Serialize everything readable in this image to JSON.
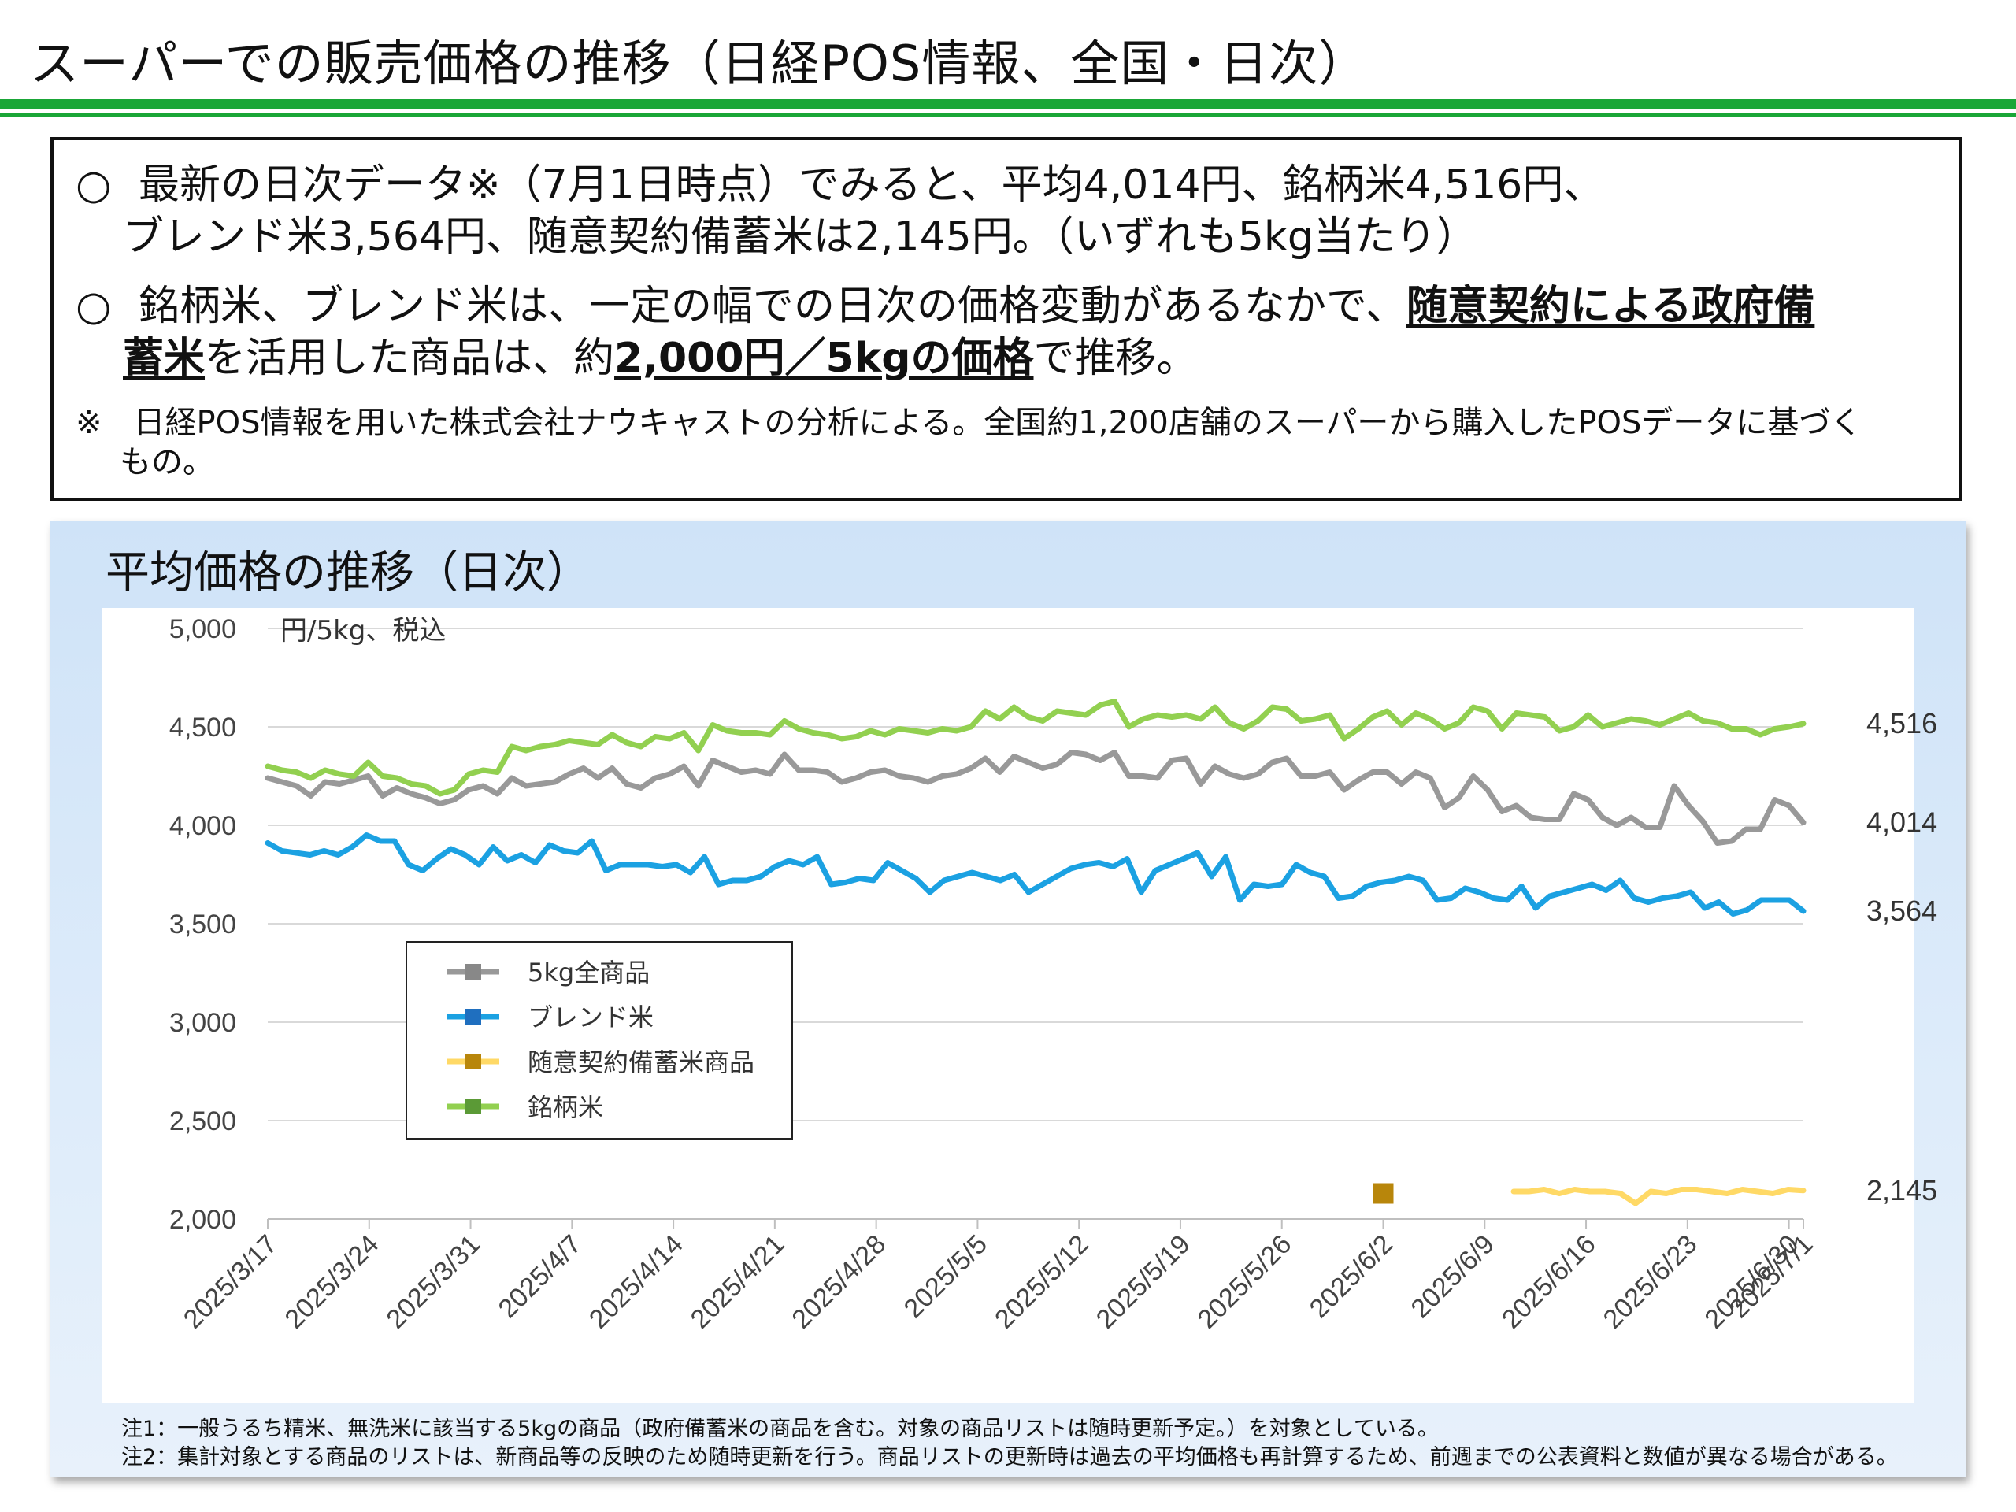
{
  "header": {
    "title": "スーパーでの販売価格の推移（日経POS情報、全国・日次）"
  },
  "summary": {
    "bullet_mark": "○",
    "b1_l1": "最新の日次データ※（7月1日時点）でみると、平均4,014円、銘柄米4,516円、",
    "b1_l2": "ブレンド米3,564円、随意契約備蓄米は2,145円。（いずれも5kg当たり）",
    "b2_a": "銘柄米、ブレンド米は、一定の幅での日次の価格変動があるなかで、",
    "b2_b": "随意契約による政府備",
    "b2_c": "蓄米",
    "b2_d": "を活用した商品は、約",
    "b2_e": "2,000円／5kgの価格",
    "b2_f": "で推移。",
    "note_l1": "※　日経POS情報を用いた株式会社ナウキャストの分析による。全国約1,200店舗のスーパーから購入したPOSデータに基づく",
    "note_l2": "もの。"
  },
  "panel": {
    "title": "平均価格の推移（日次）",
    "footnote1": "注1：一般うるち精米、無洗米に該当する5kgの商品（政府備蓄米の商品を含む。対象の商品リストは随時更新予定。）を対象としている。",
    "footnote2": "注2：集計対象とする商品のリストは、新商品等の反映のため随時更新を行う。商品リストの更新時は過去の平均価格も再計算するため、前週までの公表資料と数値が異なる場合がある。"
  },
  "chart_data": {
    "type": "line",
    "ylabel": "円/5kg、税込",
    "ylim": [
      2000,
      5000
    ],
    "yticks": [
      2000,
      2500,
      3000,
      3500,
      4000,
      4500,
      5000
    ],
    "ytick_labels": [
      "2,000",
      "2,500",
      "3,000",
      "3,500",
      "4,000",
      "4,500",
      "5,000"
    ],
    "x_start": "2025/3/17",
    "x_end": "2025/7/1",
    "xtick_labels": [
      "2025/3/17",
      "2025/3/24",
      "2025/3/31",
      "2025/4/7",
      "2025/4/14",
      "2025/4/21",
      "2025/4/28",
      "2025/5/5",
      "2025/5/12",
      "2025/5/19",
      "2025/5/26",
      "2025/6/2",
      "2025/6/9",
      "2025/6/16",
      "2025/6/23",
      "2025/6/30",
      "2025/7/1"
    ],
    "grid": "horizontal",
    "legend_position": "lower-left",
    "series": [
      {
        "name": "5kg全商品",
        "color": "#999999",
        "end_label": "4,014",
        "values": [
          4240,
          4220,
          4200,
          4150,
          4220,
          4210,
          4230,
          4250,
          4150,
          4190,
          4160,
          4140,
          4110,
          4130,
          4180,
          4200,
          4160,
          4240,
          4200,
          4210,
          4220,
          4260,
          4290,
          4240,
          4290,
          4210,
          4190,
          4240,
          4260,
          4300,
          4200,
          4330,
          4300,
          4270,
          4280,
          4260,
          4360,
          4280,
          4280,
          4270,
          4220,
          4240,
          4270,
          4280,
          4250,
          4240,
          4220,
          4250,
          4260,
          4290,
          4340,
          4270,
          4350,
          4320,
          4290,
          4310,
          4370,
          4360,
          4330,
          4370,
          4250,
          4250,
          4240,
          4330,
          4340,
          4210,
          4300,
          4260,
          4240,
          4260,
          4320,
          4340,
          4250,
          4250,
          4270,
          4180,
          4230,
          4270,
          4270,
          4210,
          4270,
          4240,
          4090,
          4140,
          4250,
          4180,
          4070,
          4100,
          4040,
          4030,
          4030,
          4160,
          4130,
          4040,
          4000,
          4040,
          3990,
          3990,
          4200,
          4100,
          4020,
          3910,
          3920,
          3980,
          3980,
          4130,
          4100,
          4014
        ]
      },
      {
        "name": "ブレンド米",
        "color": "#1ba1e2",
        "end_label": "3,564",
        "values": [
          3910,
          3870,
          3860,
          3850,
          3870,
          3850,
          3890,
          3950,
          3920,
          3920,
          3800,
          3770,
          3830,
          3880,
          3850,
          3800,
          3890,
          3820,
          3850,
          3810,
          3900,
          3870,
          3860,
          3920,
          3770,
          3800,
          3800,
          3800,
          3790,
          3800,
          3760,
          3840,
          3700,
          3720,
          3720,
          3740,
          3790,
          3820,
          3800,
          3840,
          3700,
          3710,
          3730,
          3720,
          3810,
          3770,
          3730,
          3660,
          3720,
          3740,
          3760,
          3740,
          3720,
          3750,
          3660,
          3700,
          3740,
          3780,
          3800,
          3810,
          3790,
          3830,
          3660,
          3770,
          3800,
          3830,
          3860,
          3740,
          3840,
          3620,
          3700,
          3690,
          3700,
          3800,
          3760,
          3740,
          3630,
          3640,
          3690,
          3710,
          3720,
          3740,
          3720,
          3620,
          3630,
          3680,
          3660,
          3630,
          3620,
          3690,
          3580,
          3640,
          3660,
          3680,
          3700,
          3670,
          3720,
          3630,
          3610,
          3630,
          3640,
          3660,
          3580,
          3610,
          3550,
          3570,
          3620,
          3620,
          3620,
          3564
        ]
      },
      {
        "name": "随意契約備蓄米商品",
        "color": "#ffd966",
        "end_label": "2,145",
        "single_point": {
          "date": "2025/6/2",
          "value": 2130,
          "color": "#b8860b"
        },
        "start_date": "2025/6/11",
        "values": [
          2140,
          2140,
          2150,
          2130,
          2150,
          2140,
          2140,
          2130,
          2080,
          2140,
          2130,
          2150,
          2150,
          2140,
          2130,
          2150,
          2140,
          2130,
          2150,
          2145
        ]
      },
      {
        "name": "銘柄米",
        "color": "#92d050",
        "end_label": "4,516",
        "values": [
          4300,
          4280,
          4270,
          4240,
          4280,
          4260,
          4250,
          4320,
          4250,
          4240,
          4210,
          4200,
          4160,
          4180,
          4260,
          4280,
          4270,
          4400,
          4380,
          4400,
          4410,
          4430,
          4420,
          4410,
          4460,
          4420,
          4400,
          4450,
          4440,
          4470,
          4380,
          4510,
          4480,
          4470,
          4470,
          4460,
          4530,
          4490,
          4470,
          4460,
          4440,
          4450,
          4480,
          4460,
          4490,
          4480,
          4470,
          4490,
          4480,
          4500,
          4580,
          4540,
          4600,
          4550,
          4530,
          4580,
          4570,
          4560,
          4610,
          4630,
          4500,
          4540,
          4560,
          4550,
          4560,
          4540,
          4600,
          4520,
          4490,
          4530,
          4600,
          4590,
          4530,
          4540,
          4560,
          4440,
          4490,
          4550,
          4580,
          4510,
          4570,
          4540,
          4490,
          4520,
          4600,
          4580,
          4490,
          4570,
          4560,
          4550,
          4480,
          4500,
          4560,
          4500,
          4520,
          4540,
          4530,
          4510,
          4540,
          4570,
          4530,
          4520,
          4490,
          4490,
          4460,
          4490,
          4500,
          4516
        ]
      }
    ]
  }
}
